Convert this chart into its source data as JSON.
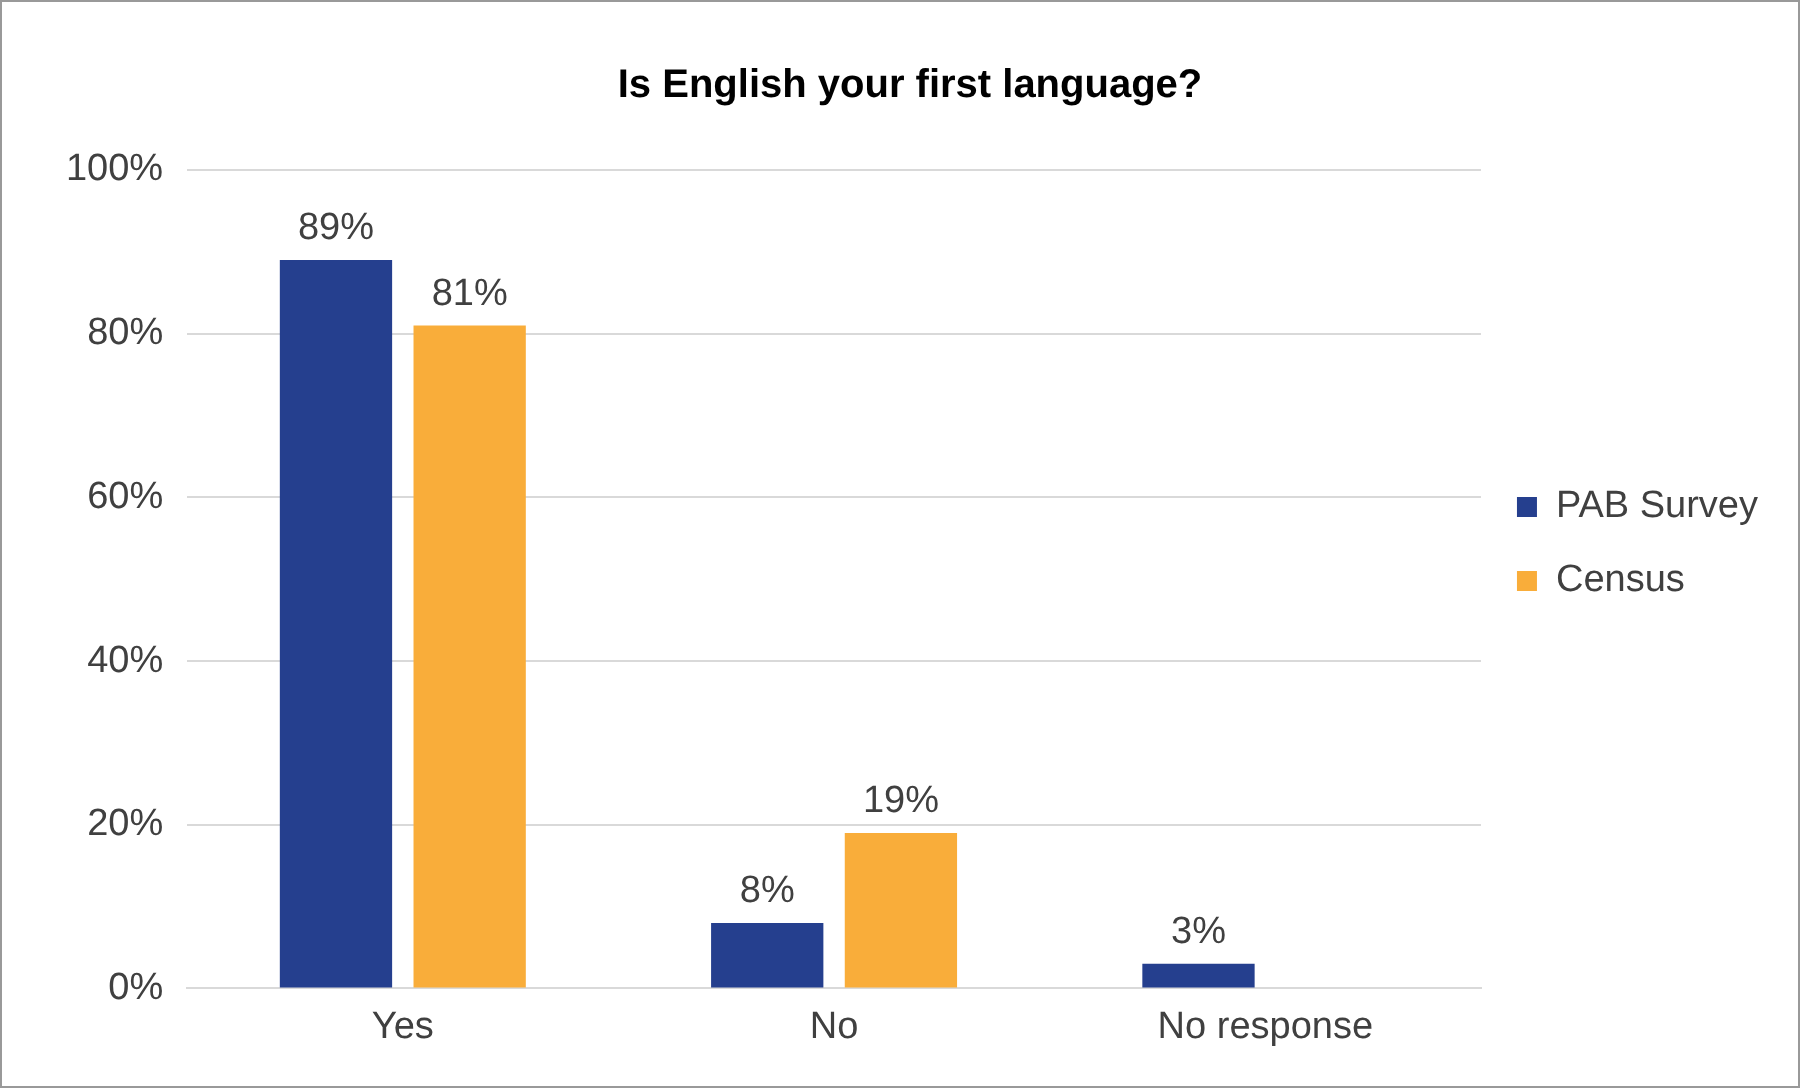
{
  "chart_data": {
    "type": "bar",
    "title": "Is English your first language?",
    "categories": [
      "Yes",
      "No",
      "No response"
    ],
    "series": [
      {
        "name": "PAB Survey",
        "color": "#253f8e",
        "values": [
          89,
          8,
          3
        ],
        "value_labels": [
          "89%",
          "8%",
          "3%"
        ]
      },
      {
        "name": "Census",
        "color": "#f9ad3a",
        "values": [
          81,
          19,
          null
        ],
        "value_labels": [
          "81%",
          "19%",
          null
        ]
      }
    ],
    "ylim": [
      0,
      100
    ],
    "yticks": [
      {
        "value": 0,
        "label": "0%"
      },
      {
        "value": 20,
        "label": "20%"
      },
      {
        "value": 40,
        "label": "40%"
      },
      {
        "value": 60,
        "label": "60%"
      },
      {
        "value": 80,
        "label": "80%"
      },
      {
        "value": 100,
        "label": "100%"
      }
    ],
    "grid": "y",
    "legend": "right"
  }
}
